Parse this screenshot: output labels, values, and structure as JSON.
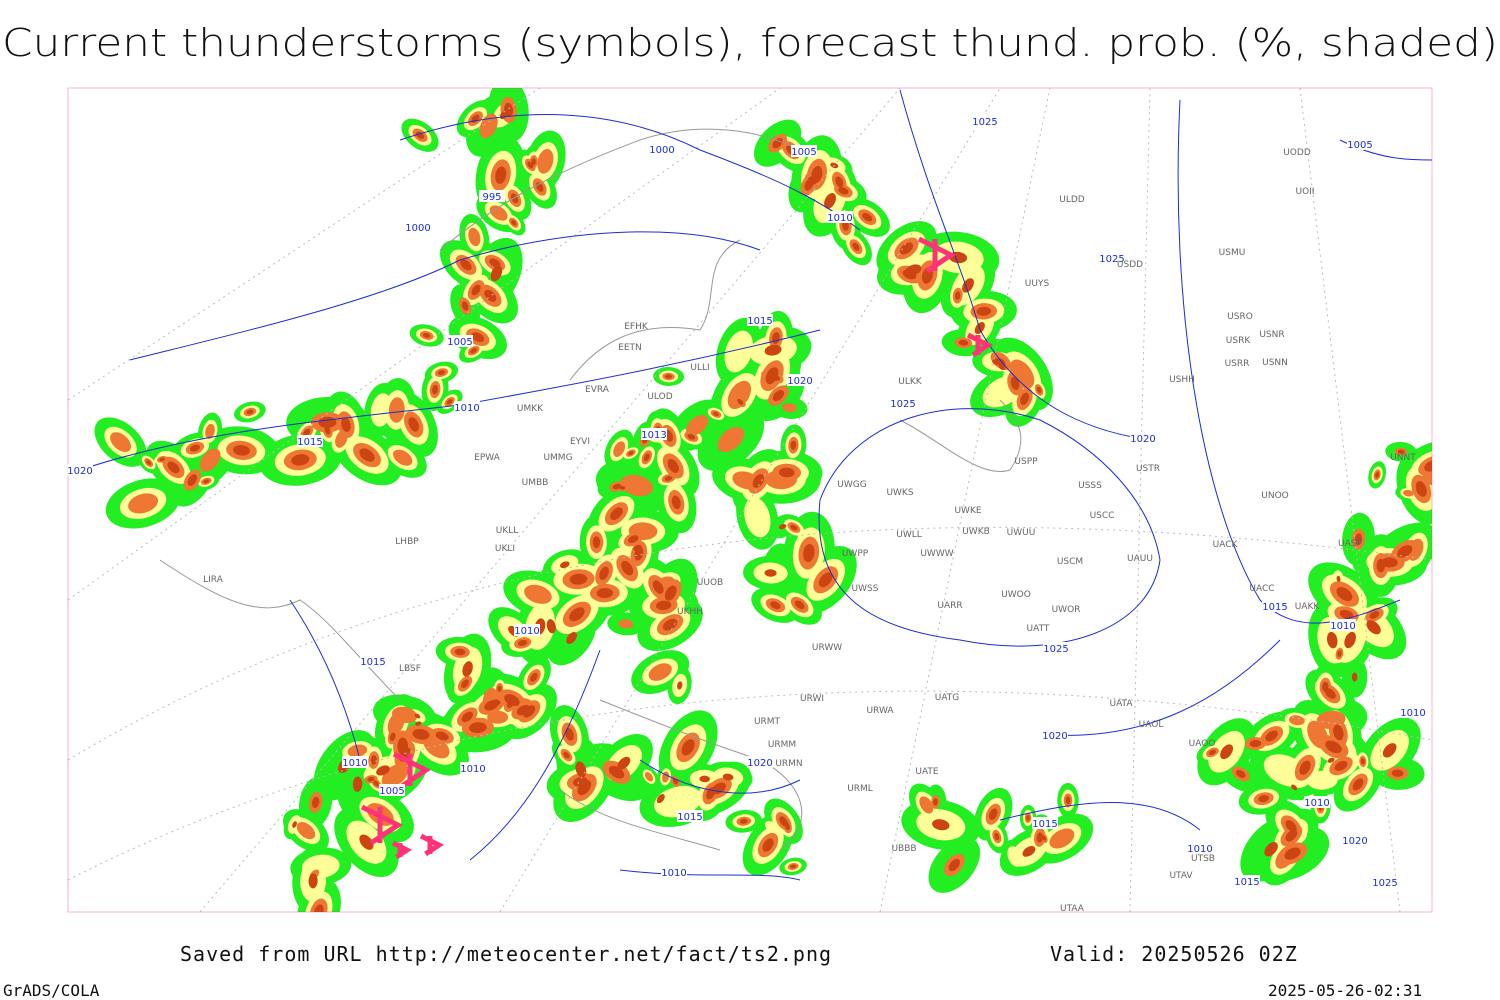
{
  "title": "Current thunderstorms (symbols), forecast thund. prob. (%, shaded)",
  "footer": {
    "source": "Saved from URL http://meteocenter.net/fact/ts2.png",
    "valid": "Valid: 20250526 02Z",
    "credit": "GrADS/COLA",
    "timestamp": "2025-05-26-02:31"
  },
  "isobar_labels": [
    1025,
    1005,
    1000,
    995,
    1000,
    1010,
    1025,
    1005,
    1015,
    1005,
    1020,
    1025,
    1010,
    1015,
    1013,
    1020,
    1020,
    1015,
    1010,
    1010,
    1025,
    1015,
    1010,
    1020,
    1020,
    1010,
    1010,
    1005,
    1015,
    1015,
    1010,
    1020,
    1010,
    1010,
    1015,
    1025
  ],
  "stations": [
    "ULDD",
    "UODD",
    "UOII",
    "USMU",
    "USDD",
    "UUYS",
    "USRO",
    "USRK",
    "USNR",
    "USRR",
    "USNN",
    "USHH",
    "ULKK",
    "EFHK",
    "EETN",
    "ULLI",
    "EVRA",
    "ULOD",
    "UMKK",
    "EYVI",
    "UMMG",
    "EPWA",
    "UMBB",
    "UWGG",
    "UWKS",
    "USSS",
    "USTR",
    "USPP",
    "UNOO",
    "UNNT",
    "UWKE",
    "UWKB",
    "UWUU",
    "USCC",
    "UACC",
    "UASP",
    "UACK",
    "UWLL",
    "UWWW",
    "UWPP",
    "USCM",
    "UAUU",
    "UKLL",
    "UKLI",
    "LHBP",
    "UWSS",
    "UWOO",
    "UWOR",
    "UARR",
    "UATT",
    "URWW",
    "UKHH",
    "UUOB",
    "LIRA",
    "LBSF",
    "URWI",
    "UATG",
    "URWA",
    "UATA",
    "UAOL",
    "UAOO",
    "URMT",
    "URMM",
    "URMN",
    "UATE",
    "URML",
    "UBBB",
    "UTSB",
    "UTAV",
    "UTAA",
    "UAKK"
  ]
}
